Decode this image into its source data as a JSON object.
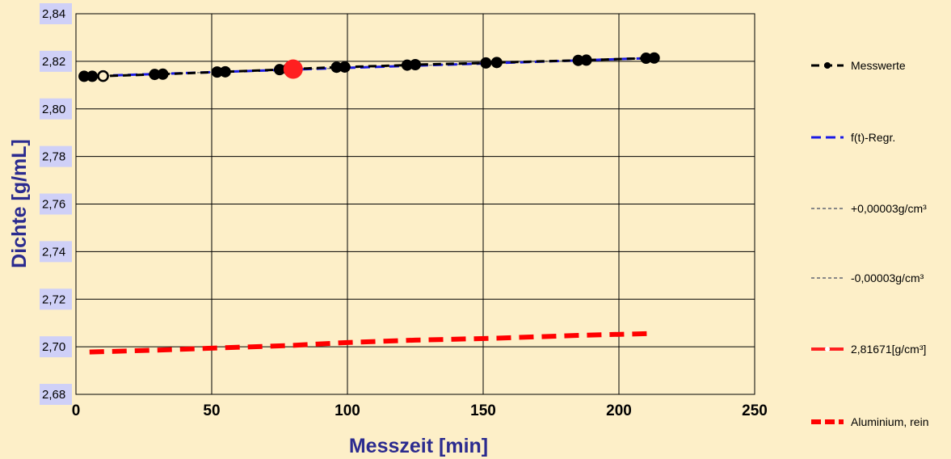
{
  "chart_data": {
    "type": "line",
    "xlabel": "Messzeit [min]",
    "ylabel": "Dichte [g/mL]",
    "xlim": [
      0,
      250
    ],
    "ylim": [
      2.68,
      2.84
    ],
    "xticks": [
      0,
      50,
      100,
      150,
      200,
      250
    ],
    "xtick_labels": [
      "0",
      "50",
      "100",
      "150",
      "200",
      "250"
    ],
    "yticks": [
      2.68,
      2.7,
      2.72,
      2.74,
      2.76,
      2.78,
      2.8,
      2.82,
      2.84
    ],
    "ytick_labels": [
      "2,68",
      "2,70",
      "2,72",
      "2,74",
      "2,76",
      "2,78",
      "2,80",
      "2,82",
      "2,84"
    ],
    "grid": true,
    "legend_position": "right",
    "series": [
      {
        "name": "Messwerte",
        "color": "#000000",
        "style": "dashed-markers",
        "x": [
          3,
          6,
          10,
          29,
          32,
          52,
          55,
          75,
          78,
          96,
          99,
          122,
          125,
          151,
          155,
          185,
          188,
          210,
          213
        ],
        "y": [
          2.8137,
          2.8137,
          2.8138,
          2.8145,
          2.8146,
          2.8155,
          2.8156,
          2.8165,
          2.8167,
          2.8175,
          2.8176,
          2.8184,
          2.8186,
          2.8193,
          2.8195,
          2.8204,
          2.8205,
          2.8213,
          2.8214
        ]
      },
      {
        "name": "f(t)-Regr.",
        "color": "#1a1ae6",
        "style": "dashed",
        "x": [
          3,
          213
        ],
        "y": [
          2.8137,
          2.8214
        ]
      },
      {
        "name": "+0,00003g/cm³",
        "color": "#888888",
        "style": "dashed-thin",
        "x": [
          3,
          213
        ],
        "y": [
          2.81373,
          2.82143
        ]
      },
      {
        "name": "-0,00003g/cm³",
        "color": "#888888",
        "style": "dashed-thin",
        "x": [
          3,
          213
        ],
        "y": [
          2.81367,
          2.82137
        ]
      },
      {
        "name": "2,81671[g/cm³]",
        "color": "#ff2020",
        "style": "marker",
        "x": [
          80
        ],
        "y": [
          2.81671
        ]
      },
      {
        "name": "Aluminium, rein",
        "color": "#ff0000",
        "style": "dashed-thick",
        "x": [
          5,
          30,
          55,
          80,
          100,
          125,
          155,
          185,
          213
        ],
        "y": [
          2.6978,
          2.6986,
          2.6996,
          2.7006,
          2.7018,
          2.7028,
          2.7036,
          2.7048,
          2.7056
        ]
      }
    ]
  }
}
